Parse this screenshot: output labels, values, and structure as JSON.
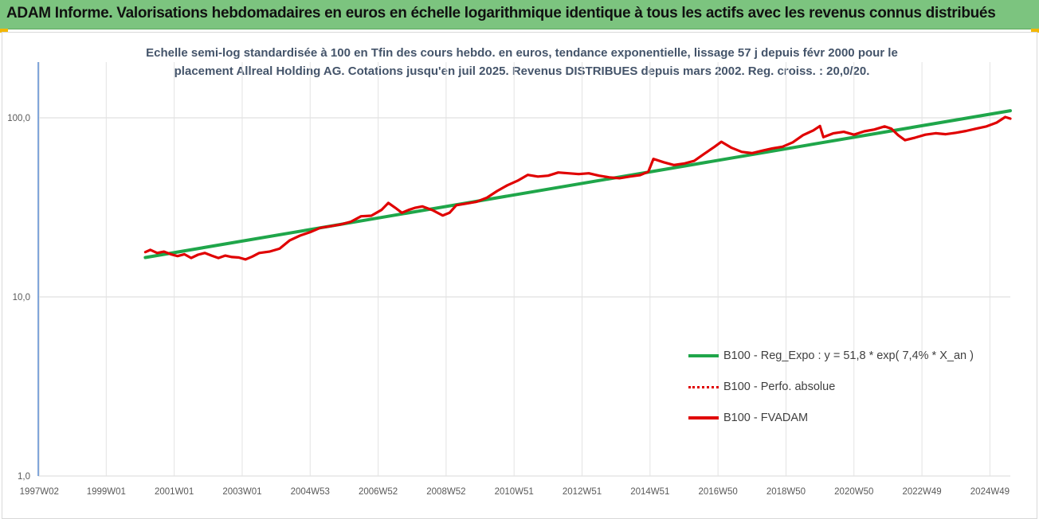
{
  "banner": {
    "title": "ADAM Informe. Valorisations hebdomadaires en euros en échelle logarithmique identique à tous les actifs avec les revenus connus distribués",
    "color": "#7cc47f"
  },
  "chart_data": {
    "type": "line",
    "title_line1": "Echelle semi-log standardisée à 100 en Tfin des cours hebdo. en euros, tendance exponentielle, lissage 57 j depuis févr 2000 pour le",
    "title_line2": "placement Allreal Holding AG. Cotations jusqu'en juil 2025. Revenus DISTRIBUES depuis mars 2002. Reg. croiss. : 20,0/20.",
    "y_scale": "log",
    "ylim": [
      1,
      100
    ],
    "y_ticks": [
      "1,0",
      "10,0",
      "100,0"
    ],
    "x_range": [
      1997.0,
      2025.6
    ],
    "x_ticks": [
      {
        "label": "1997W02",
        "x": 1997.03
      },
      {
        "label": "1999W01",
        "x": 1999.0
      },
      {
        "label": "2001W01",
        "x": 2001.0
      },
      {
        "label": "2003W01",
        "x": 2003.0
      },
      {
        "label": "2004W53",
        "x": 2005.0
      },
      {
        "label": "2006W52",
        "x": 2007.0
      },
      {
        "label": "2008W52",
        "x": 2009.0
      },
      {
        "label": "2010W51",
        "x": 2011.0
      },
      {
        "label": "2012W51",
        "x": 2013.0
      },
      {
        "label": "2014W51",
        "x": 2015.0
      },
      {
        "label": "2016W50",
        "x": 2017.0
      },
      {
        "label": "2018W50",
        "x": 2019.0
      },
      {
        "label": "2020W50",
        "x": 2021.0
      },
      {
        "label": "2022W49",
        "x": 2023.0
      },
      {
        "label": "2024W49",
        "x": 2025.0
      }
    ],
    "grid": true,
    "legend_position": "bottom-right",
    "series": [
      {
        "name": "B100 - Reg_Expo : y = 51,8 * exp( 7,4% *  X_an )",
        "color": "#1fa64a",
        "style": "solid",
        "points": [
          [
            2000.15,
            16.6
          ],
          [
            2025.6,
            109.5
          ]
        ]
      },
      {
        "name": "B100 - Perfo. absolue",
        "color": "#e00000",
        "style": "dotted",
        "points": []
      },
      {
        "name": "B100 - FVADAM",
        "color": "#e00000",
        "style": "solid",
        "points": [
          [
            2000.15,
            17.8
          ],
          [
            2000.3,
            18.3
          ],
          [
            2000.5,
            17.6
          ],
          [
            2000.7,
            17.9
          ],
          [
            2000.9,
            17.3
          ],
          [
            2001.1,
            16.9
          ],
          [
            2001.3,
            17.3
          ],
          [
            2001.5,
            16.5
          ],
          [
            2001.7,
            17.2
          ],
          [
            2001.9,
            17.6
          ],
          [
            2002.1,
            17.0
          ],
          [
            2002.3,
            16.5
          ],
          [
            2002.5,
            17.0
          ],
          [
            2002.7,
            16.7
          ],
          [
            2002.9,
            16.6
          ],
          [
            2003.1,
            16.2
          ],
          [
            2003.3,
            16.8
          ],
          [
            2003.5,
            17.6
          ],
          [
            2003.8,
            17.9
          ],
          [
            2004.1,
            18.6
          ],
          [
            2004.4,
            20.7
          ],
          [
            2004.7,
            22.0
          ],
          [
            2005.0,
            23.0
          ],
          [
            2005.3,
            24.3
          ],
          [
            2005.6,
            24.8
          ],
          [
            2005.9,
            25.4
          ],
          [
            2006.2,
            26.3
          ],
          [
            2006.5,
            28.2
          ],
          [
            2006.8,
            28.4
          ],
          [
            2007.1,
            30.6
          ],
          [
            2007.3,
            33.5
          ],
          [
            2007.5,
            31.5
          ],
          [
            2007.7,
            29.5
          ],
          [
            2007.9,
            30.6
          ],
          [
            2008.1,
            31.5
          ],
          [
            2008.3,
            32.0
          ],
          [
            2008.6,
            30.5
          ],
          [
            2008.9,
            28.5
          ],
          [
            2009.1,
            29.5
          ],
          [
            2009.3,
            32.5
          ],
          [
            2009.6,
            33.2
          ],
          [
            2009.9,
            34.0
          ],
          [
            2010.2,
            35.8
          ],
          [
            2010.5,
            39.0
          ],
          [
            2010.8,
            42.0
          ],
          [
            2011.1,
            44.5
          ],
          [
            2011.4,
            48.0
          ],
          [
            2011.7,
            47.0
          ],
          [
            2012.0,
            47.5
          ],
          [
            2012.3,
            49.5
          ],
          [
            2012.6,
            49.0
          ],
          [
            2012.9,
            48.5
          ],
          [
            2013.2,
            49.0
          ],
          [
            2013.5,
            47.5
          ],
          [
            2013.8,
            46.5
          ],
          [
            2014.1,
            46.0
          ],
          [
            2014.4,
            47.0
          ],
          [
            2014.7,
            47.8
          ],
          [
            2014.95,
            50.0
          ],
          [
            2015.1,
            59.0
          ],
          [
            2015.4,
            56.5
          ],
          [
            2015.7,
            54.5
          ],
          [
            2016.0,
            55.5
          ],
          [
            2016.3,
            57.5
          ],
          [
            2016.6,
            63.0
          ],
          [
            2016.9,
            69.0
          ],
          [
            2017.1,
            73.5
          ],
          [
            2017.4,
            68.0
          ],
          [
            2017.7,
            64.5
          ],
          [
            2018.0,
            63.5
          ],
          [
            2018.3,
            65.5
          ],
          [
            2018.6,
            67.5
          ],
          [
            2018.9,
            69.0
          ],
          [
            2019.2,
            73.0
          ],
          [
            2019.5,
            80.0
          ],
          [
            2019.8,
            85.0
          ],
          [
            2020.0,
            90.0
          ],
          [
            2020.1,
            78.0
          ],
          [
            2020.4,
            82.0
          ],
          [
            2020.7,
            83.5
          ],
          [
            2021.0,
            80.5
          ],
          [
            2021.3,
            84.0
          ],
          [
            2021.6,
            86.0
          ],
          [
            2021.9,
            89.5
          ],
          [
            2022.1,
            87.0
          ],
          [
            2022.3,
            80.0
          ],
          [
            2022.5,
            75.0
          ],
          [
            2022.8,
            77.5
          ],
          [
            2023.1,
            80.5
          ],
          [
            2023.4,
            82.0
          ],
          [
            2023.7,
            81.0
          ],
          [
            2024.0,
            82.5
          ],
          [
            2024.3,
            84.5
          ],
          [
            2024.6,
            87.0
          ],
          [
            2024.9,
            89.5
          ],
          [
            2025.2,
            94.0
          ],
          [
            2025.45,
            101.0
          ],
          [
            2025.6,
            99.0
          ]
        ]
      }
    ]
  }
}
